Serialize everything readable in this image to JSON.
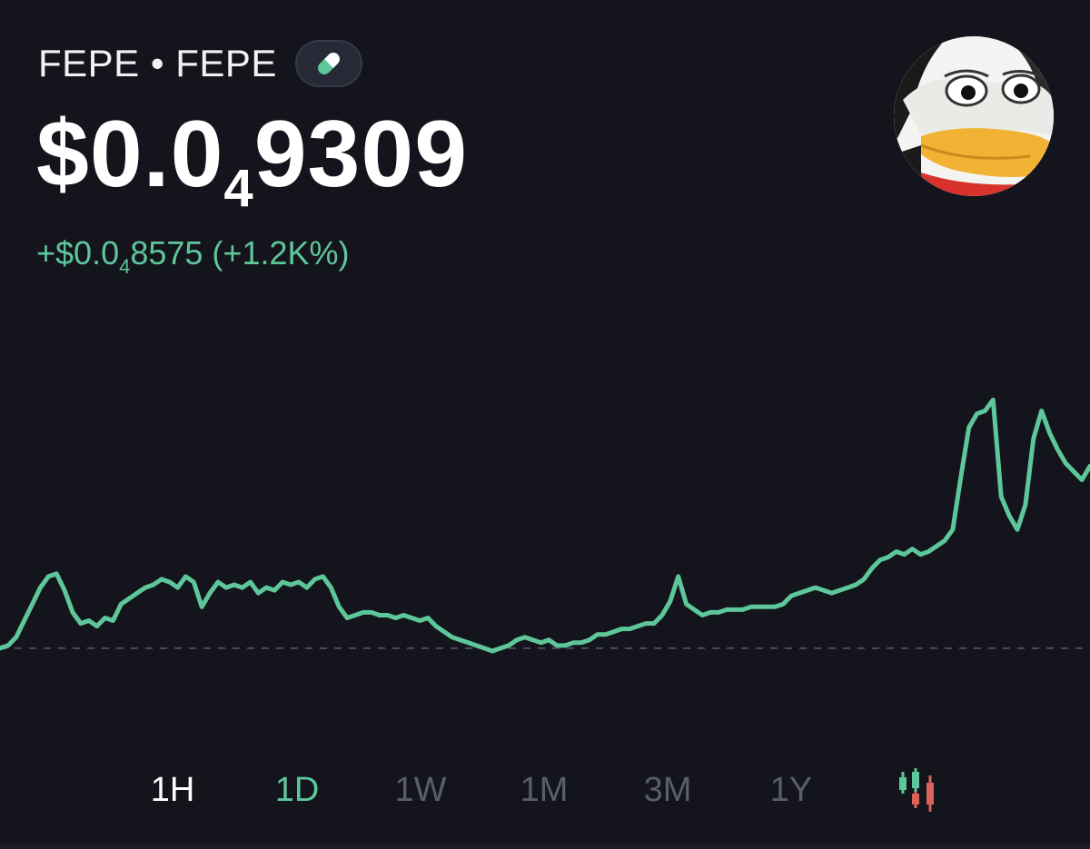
{
  "token": {
    "name": "FEPE • FEPE",
    "price_prefix": "$0.0",
    "price_subscript": "4",
    "price_suffix": "9309",
    "change_prefix": "+$0.0",
    "change_subscript": "4",
    "change_suffix": "8575 (+1.2K%)"
  },
  "icons": {
    "badge": "pill-icon",
    "avatar": "pepe-avatar",
    "chart_toggle": "candlestick-icon"
  },
  "colors": {
    "background": "#14141c",
    "accent_green": "#5ec79a",
    "inactive_tab": "#5a5e6a",
    "candle_red": "#d9635b"
  },
  "tabs": [
    {
      "label": "1H",
      "state": "white"
    },
    {
      "label": "1D",
      "state": "selected"
    },
    {
      "label": "1W",
      "state": "inactive"
    },
    {
      "label": "1M",
      "state": "inactive"
    },
    {
      "label": "3M",
      "state": "inactive"
    },
    {
      "label": "1Y",
      "state": "inactive"
    }
  ],
  "chart_data": {
    "type": "line",
    "title": "",
    "xlabel": "",
    "ylabel": "",
    "baseline": 0,
    "ylim": [
      -2,
      100
    ],
    "values": [
      0,
      1,
      4,
      10,
      16,
      22,
      26,
      27,
      21,
      13,
      9,
      10,
      8,
      11,
      10,
      16,
      18,
      20,
      22,
      23,
      25,
      24,
      22,
      26,
      24,
      15,
      20,
      24,
      22,
      23,
      22,
      24,
      20,
      22,
      21,
      24,
      23,
      24,
      22,
      25,
      26,
      22,
      15,
      11,
      12,
      13,
      13,
      12,
      12,
      11,
      12,
      11,
      10,
      11,
      8,
      6,
      4,
      3,
      2,
      1,
      0,
      -1,
      0,
      1,
      3,
      4,
      3,
      2,
      3,
      1,
      1,
      2,
      2,
      3,
      5,
      5,
      6,
      7,
      7,
      8,
      9,
      9,
      12,
      17,
      26,
      16,
      14,
      12,
      13,
      13,
      14,
      14,
      14,
      15,
      15,
      15,
      15,
      16,
      19,
      20,
      21,
      22,
      21,
      20,
      21,
      22,
      23,
      25,
      29,
      32,
      33,
      35,
      34,
      36,
      34,
      35,
      37,
      39,
      43,
      62,
      80,
      85,
      86,
      90,
      55,
      48,
      43,
      52,
      76,
      86,
      78,
      72,
      67,
      64,
      61,
      66
    ]
  }
}
